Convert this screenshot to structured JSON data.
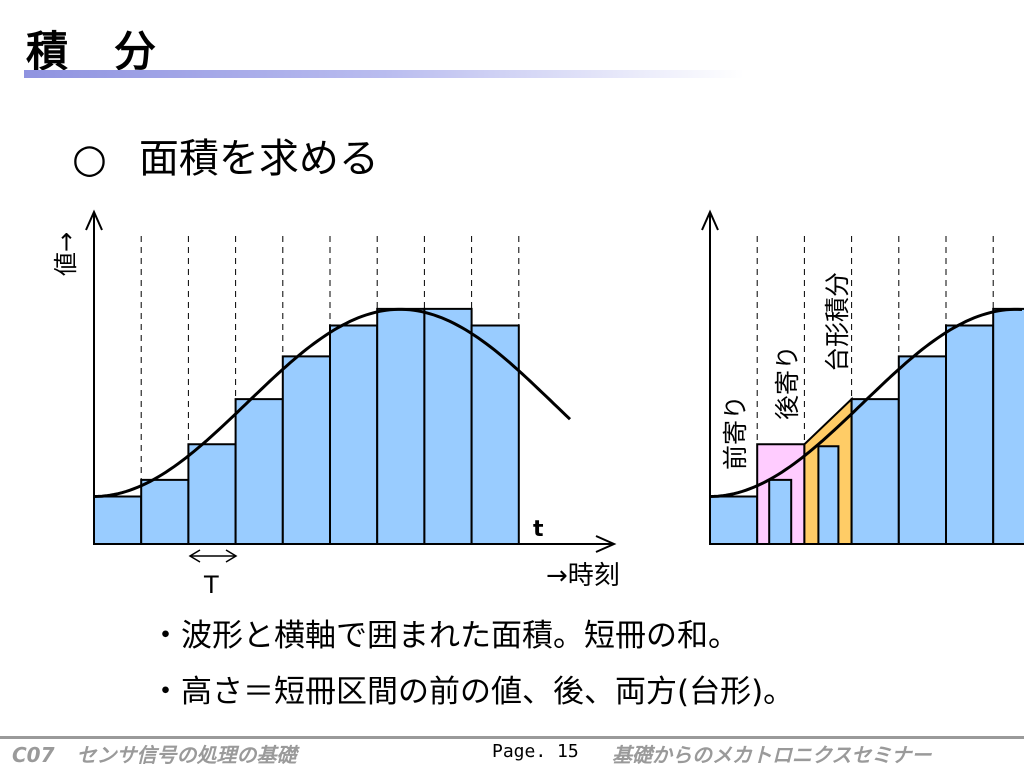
{
  "slide": {
    "title": "積　分",
    "subtitle_mark": "○",
    "subtitle": "面積を求める",
    "bullets": [
      "・波形と横軸で囲まれた面積。短冊の和。",
      "・高さ＝短冊区間の前の値、後、両方(台形)。"
    ]
  },
  "footer": {
    "course": "C07",
    "course_title": "センサ信号の処理の基礎",
    "page": "Page. 15",
    "seminar": "基礎からのメカトロニクスセミナー"
  },
  "colors": {
    "bar": "#99ccff",
    "pink": "#ffccff",
    "orange": "#ffcc66",
    "accent_rule": "#9999e6"
  },
  "chart_data": [
    {
      "type": "bar",
      "title": "",
      "ylabel": "値→",
      "xlabel": "→時刻",
      "x_end_label": "t",
      "interval_label": "T",
      "values": [
        1.0,
        1.35,
        2.1,
        3.05,
        3.95,
        4.6,
        4.95,
        4.95,
        4.6
      ],
      "curve": "sinusoid, rising from 1.0 to peak 4.95 then falling",
      "ylim": [
        0,
        6.5
      ]
    },
    {
      "type": "bar",
      "title": "",
      "annotations": [
        "前寄り",
        "後寄り",
        "台形積分"
      ],
      "values": [
        1.0,
        2.1,
        2.1,
        3.05,
        3.95,
        4.6,
        4.95
      ],
      "highlighted": [
        {
          "label": "前寄り",
          "color": "pink"
        },
        {
          "label": "台形積分",
          "color": "orange"
        }
      ],
      "ylim": [
        0,
        6.5
      ]
    }
  ]
}
